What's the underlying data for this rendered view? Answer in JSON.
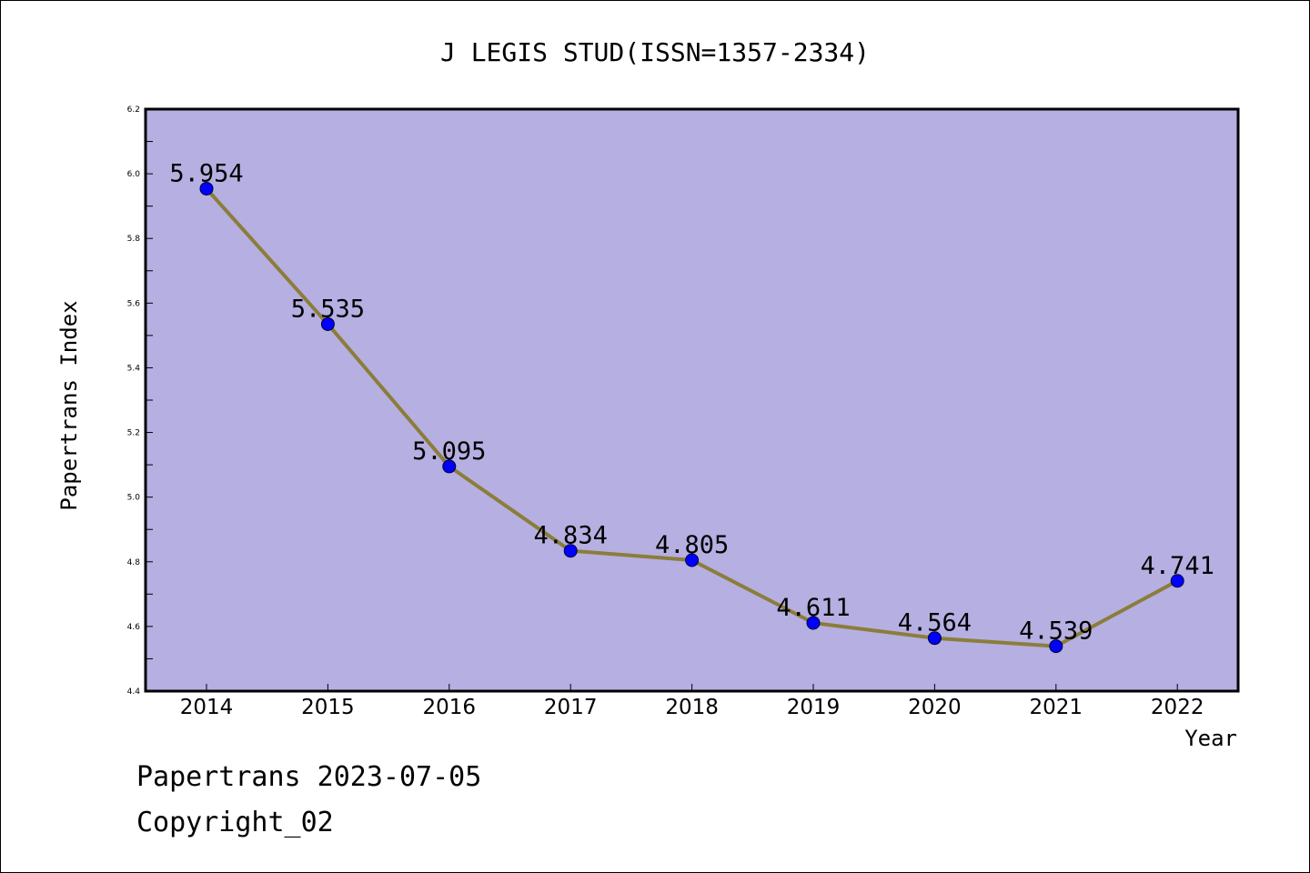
{
  "footer": {
    "line1": "Papertrans 2023-07-05",
    "line2": "Copyright_02"
  },
  "chart_data": {
    "type": "line",
    "title": "J LEGIS STUD(ISSN=1357-2334)",
    "xlabel": "Year",
    "ylabel": "Papertrans Index",
    "x": [
      "2014",
      "2015",
      "2016",
      "2017",
      "2018",
      "2019",
      "2020",
      "2021",
      "2022"
    ],
    "series": [
      {
        "values": [
          5.954,
          5.535,
          5.095,
          4.834,
          4.805,
          4.611,
          4.564,
          4.539,
          4.741
        ]
      }
    ],
    "data_labels": [
      "5.954",
      "5.535",
      "5.095",
      "4.834",
      "4.805",
      "4.611",
      "4.564",
      "4.539",
      "4.741"
    ],
    "ylim": [
      4.4,
      6.2
    ],
    "yticks": [
      "4.4",
      "4.6",
      "4.8",
      "5.0",
      "5.2",
      "5.4",
      "5.6",
      "5.8",
      "6.0",
      "6.2"
    ],
    "grid": false,
    "colors": {
      "plot_background": "#b5afe2",
      "line": "#8b7d3a",
      "marker": "#0000ff"
    }
  }
}
